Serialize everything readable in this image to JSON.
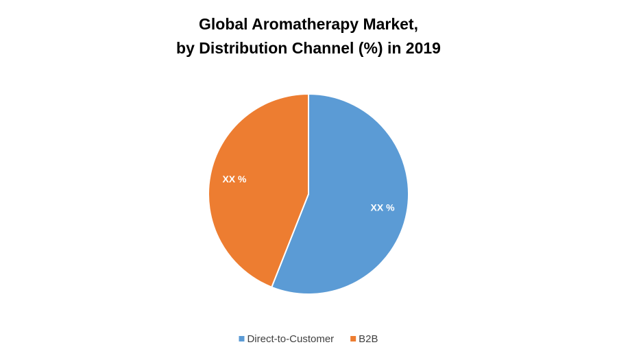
{
  "chart_data": {
    "type": "pie",
    "title": "Global Aromatherapy Market,\nby Distribution Channel (%) in 2019",
    "categories": [
      "Direct-to-Customer",
      "B2B"
    ],
    "values": [
      56,
      44
    ],
    "value_labels": [
      "XX %",
      "XX %"
    ],
    "colors": [
      "#5b9bd5",
      "#ed7d31"
    ],
    "legend": "bottom"
  }
}
